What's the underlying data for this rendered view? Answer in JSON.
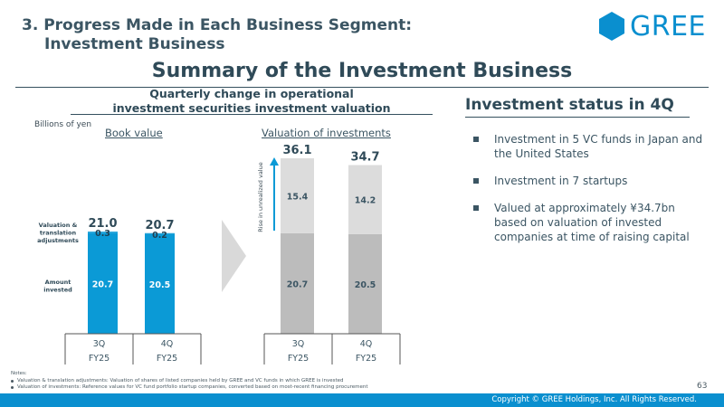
{
  "heading": {
    "line1": "3. Progress Made in Each Business Segment:",
    "line2": "Investment Business"
  },
  "logo": {
    "text": "GREE",
    "color": "#0a8fcf"
  },
  "title": "Summary of the Investment Business",
  "subtitle": {
    "line1": "Quarterly change in operational",
    "line2": "investment securities investment valuation"
  },
  "unit": "Billions of yen",
  "left_panel": {
    "label": "Book value"
  },
  "right_panel": {
    "label": "Valuation of investments",
    "rise_label": "Rise in unrealized value"
  },
  "row_labels": {
    "valuation": [
      "Valuation &",
      "translation",
      "adjustments"
    ],
    "amount": [
      "Amount",
      "invested"
    ]
  },
  "chart_data": [
    {
      "type": "bar",
      "stacked": true,
      "title": "Book value",
      "categories": [
        [
          "3Q",
          "FY25"
        ],
        [
          "4Q",
          "FY25"
        ]
      ],
      "totals": [
        "21.0",
        "20.7"
      ],
      "series": [
        {
          "name": "Amount invested",
          "values": [
            20.7,
            20.5
          ],
          "labels": [
            "20.7",
            "20.5"
          ],
          "color": "#0b9ad6"
        },
        {
          "name": "Valuation & translation adjustments",
          "values": [
            0.3,
            0.2
          ],
          "labels": [
            "0.3",
            "0.2"
          ],
          "color": "#0b9ad6"
        }
      ],
      "ylim": [
        0,
        36.1
      ]
    },
    {
      "type": "bar",
      "stacked": true,
      "title": "Valuation of investments",
      "categories": [
        [
          "3Q",
          "FY25"
        ],
        [
          "4Q",
          "FY25"
        ]
      ],
      "totals": [
        "36.1",
        "34.7"
      ],
      "series": [
        {
          "name": "Book value",
          "values": [
            20.7,
            20.5
          ],
          "labels": [
            "20.7",
            "20.5"
          ],
          "color": "#bcbcbc"
        },
        {
          "name": "Rise in unrealized value",
          "values": [
            15.4,
            14.2
          ],
          "labels": [
            "15.4",
            "14.2"
          ],
          "color": "#dcdcdc"
        }
      ],
      "ylim": [
        0,
        36.1
      ]
    }
  ],
  "status": {
    "title": "Investment status in 4Q",
    "bullets": [
      "Investment in 5 VC funds in Japan and the United States",
      "Investment in 7 startups",
      "Valued at approximately ¥34.7bn based on valuation of invested companies at time of raising capital"
    ]
  },
  "notes": {
    "title": "Notes:",
    "items": [
      "Valuation & translation adjustments: Valuation of shares of listed companies held by GREE and VC funds in which GREE is invested",
      "Valuation of investments: Reference values for VC fund portfolio startup companies, converted based on most-recent financing procurement"
    ]
  },
  "page_number": "63",
  "copyright": "Copyright © GREE Holdings, Inc. All Rights Reserved."
}
